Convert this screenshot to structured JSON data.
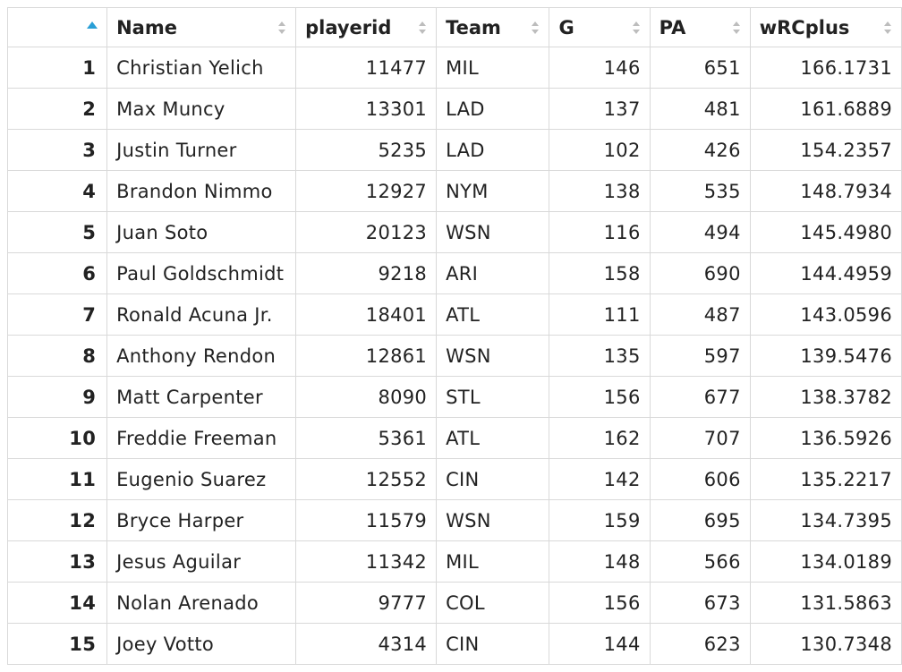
{
  "table": {
    "columns": [
      {
        "key": "idx",
        "label": ""
      },
      {
        "key": "name",
        "label": "Name"
      },
      {
        "key": "playerid",
        "label": "playerid"
      },
      {
        "key": "team",
        "label": "Team"
      },
      {
        "key": "g",
        "label": "G"
      },
      {
        "key": "pa",
        "label": "PA"
      },
      {
        "key": "wrcplus",
        "label": "wRCplus"
      }
    ],
    "sort_state": {
      "column": "idx",
      "direction": "ascending",
      "active_color": "#2a9fd6",
      "inactive_color": "#bdbdbd"
    },
    "rows": [
      {
        "idx": "1",
        "name": "Christian Yelich",
        "playerid": "11477",
        "team": "MIL",
        "g": "146",
        "pa": "651",
        "wrcplus": "166.1731"
      },
      {
        "idx": "2",
        "name": "Max Muncy",
        "playerid": "13301",
        "team": "LAD",
        "g": "137",
        "pa": "481",
        "wrcplus": "161.6889"
      },
      {
        "idx": "3",
        "name": "Justin Turner",
        "playerid": "5235",
        "team": "LAD",
        "g": "102",
        "pa": "426",
        "wrcplus": "154.2357"
      },
      {
        "idx": "4",
        "name": "Brandon Nimmo",
        "playerid": "12927",
        "team": "NYM",
        "g": "138",
        "pa": "535",
        "wrcplus": "148.7934"
      },
      {
        "idx": "5",
        "name": "Juan Soto",
        "playerid": "20123",
        "team": "WSN",
        "g": "116",
        "pa": "494",
        "wrcplus": "145.4980"
      },
      {
        "idx": "6",
        "name": "Paul Goldschmidt",
        "playerid": "9218",
        "team": "ARI",
        "g": "158",
        "pa": "690",
        "wrcplus": "144.4959"
      },
      {
        "idx": "7",
        "name": "Ronald Acuna Jr.",
        "playerid": "18401",
        "team": "ATL",
        "g": "111",
        "pa": "487",
        "wrcplus": "143.0596"
      },
      {
        "idx": "8",
        "name": "Anthony Rendon",
        "playerid": "12861",
        "team": "WSN",
        "g": "135",
        "pa": "597",
        "wrcplus": "139.5476"
      },
      {
        "idx": "9",
        "name": "Matt Carpenter",
        "playerid": "8090",
        "team": "STL",
        "g": "156",
        "pa": "677",
        "wrcplus": "138.3782"
      },
      {
        "idx": "10",
        "name": "Freddie Freeman",
        "playerid": "5361",
        "team": "ATL",
        "g": "162",
        "pa": "707",
        "wrcplus": "136.5926"
      },
      {
        "idx": "11",
        "name": "Eugenio Suarez",
        "playerid": "12552",
        "team": "CIN",
        "g": "142",
        "pa": "606",
        "wrcplus": "135.2217"
      },
      {
        "idx": "12",
        "name": "Bryce Harper",
        "playerid": "11579",
        "team": "WSN",
        "g": "159",
        "pa": "695",
        "wrcplus": "134.7395"
      },
      {
        "idx": "13",
        "name": "Jesus Aguilar",
        "playerid": "11342",
        "team": "MIL",
        "g": "148",
        "pa": "566",
        "wrcplus": "134.0189"
      },
      {
        "idx": "14",
        "name": "Nolan Arenado",
        "playerid": "9777",
        "team": "COL",
        "g": "156",
        "pa": "673",
        "wrcplus": "131.5863"
      },
      {
        "idx": "15",
        "name": "Joey Votto",
        "playerid": "4314",
        "team": "CIN",
        "g": "144",
        "pa": "623",
        "wrcplus": "130.7348"
      }
    ]
  }
}
